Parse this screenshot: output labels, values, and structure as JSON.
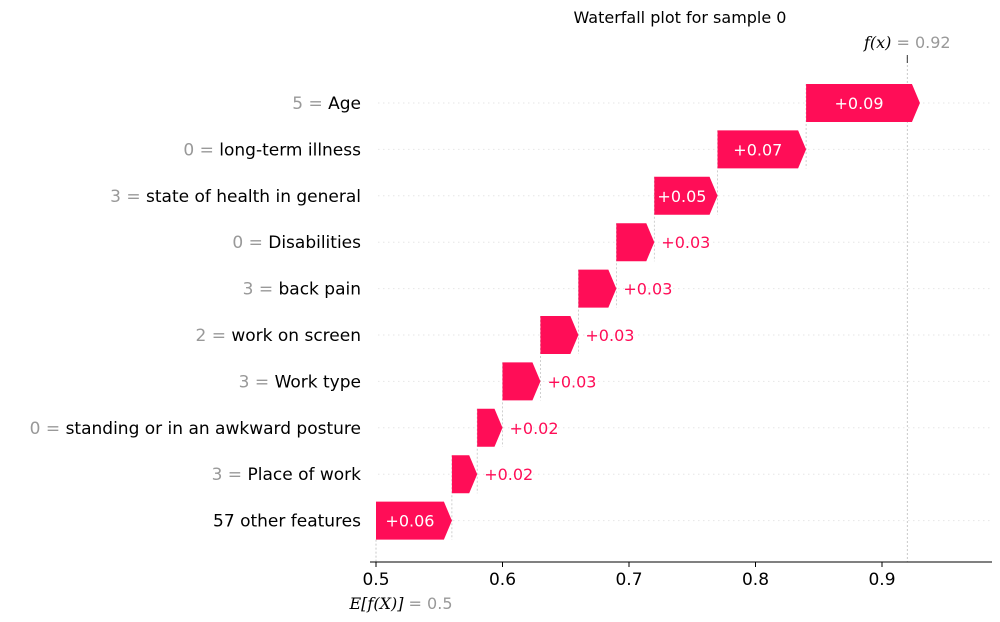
{
  "chart_data": {
    "type": "waterfall",
    "title": "Waterfall plot for sample 0",
    "base_value": 0.5,
    "base_label": "E[f(X)]",
    "base_value_text": "= 0.5",
    "output_value": 0.92,
    "output_label": "f(x)",
    "output_value_text": "= 0.92",
    "xlim": [
      0.5,
      0.99
    ],
    "xticks": [
      0.5,
      0.6,
      0.7,
      0.8,
      0.9
    ],
    "xtick_labels": [
      "0.5",
      "0.6",
      "0.7",
      "0.8",
      "0.9"
    ],
    "features": [
      {
        "value": "5",
        "name": "Age",
        "contribution": 0.09,
        "label": "+0.09"
      },
      {
        "value": "0",
        "name": "long-term illness",
        "contribution": 0.07,
        "label": "+0.07"
      },
      {
        "value": "3",
        "name": "state of health in general",
        "contribution": 0.05,
        "label": "+0.05"
      },
      {
        "value": "0",
        "name": "Disabilities",
        "contribution": 0.03,
        "label": "+0.03"
      },
      {
        "value": "3",
        "name": "back pain",
        "contribution": 0.03,
        "label": "+0.03"
      },
      {
        "value": "2",
        "name": "work on screen",
        "contribution": 0.03,
        "label": "+0.03"
      },
      {
        "value": "3",
        "name": "Work type",
        "contribution": 0.03,
        "label": "+0.03"
      },
      {
        "value": "0",
        "name": "standing or in an awkward posture",
        "contribution": 0.02,
        "label": "+0.02"
      },
      {
        "value": "3",
        "name": "Place of work",
        "contribution": 0.02,
        "label": "+0.02"
      },
      {
        "value": "",
        "name": "57 other features",
        "contribution": 0.06,
        "label": "+0.06"
      }
    ],
    "colors": {
      "positive": "#ff0d57",
      "label_inside": "#ffffff",
      "axis": "#000000",
      "muted": "#999999",
      "grid": "#e6e6e6",
      "connector": "#bbbbbb"
    }
  }
}
